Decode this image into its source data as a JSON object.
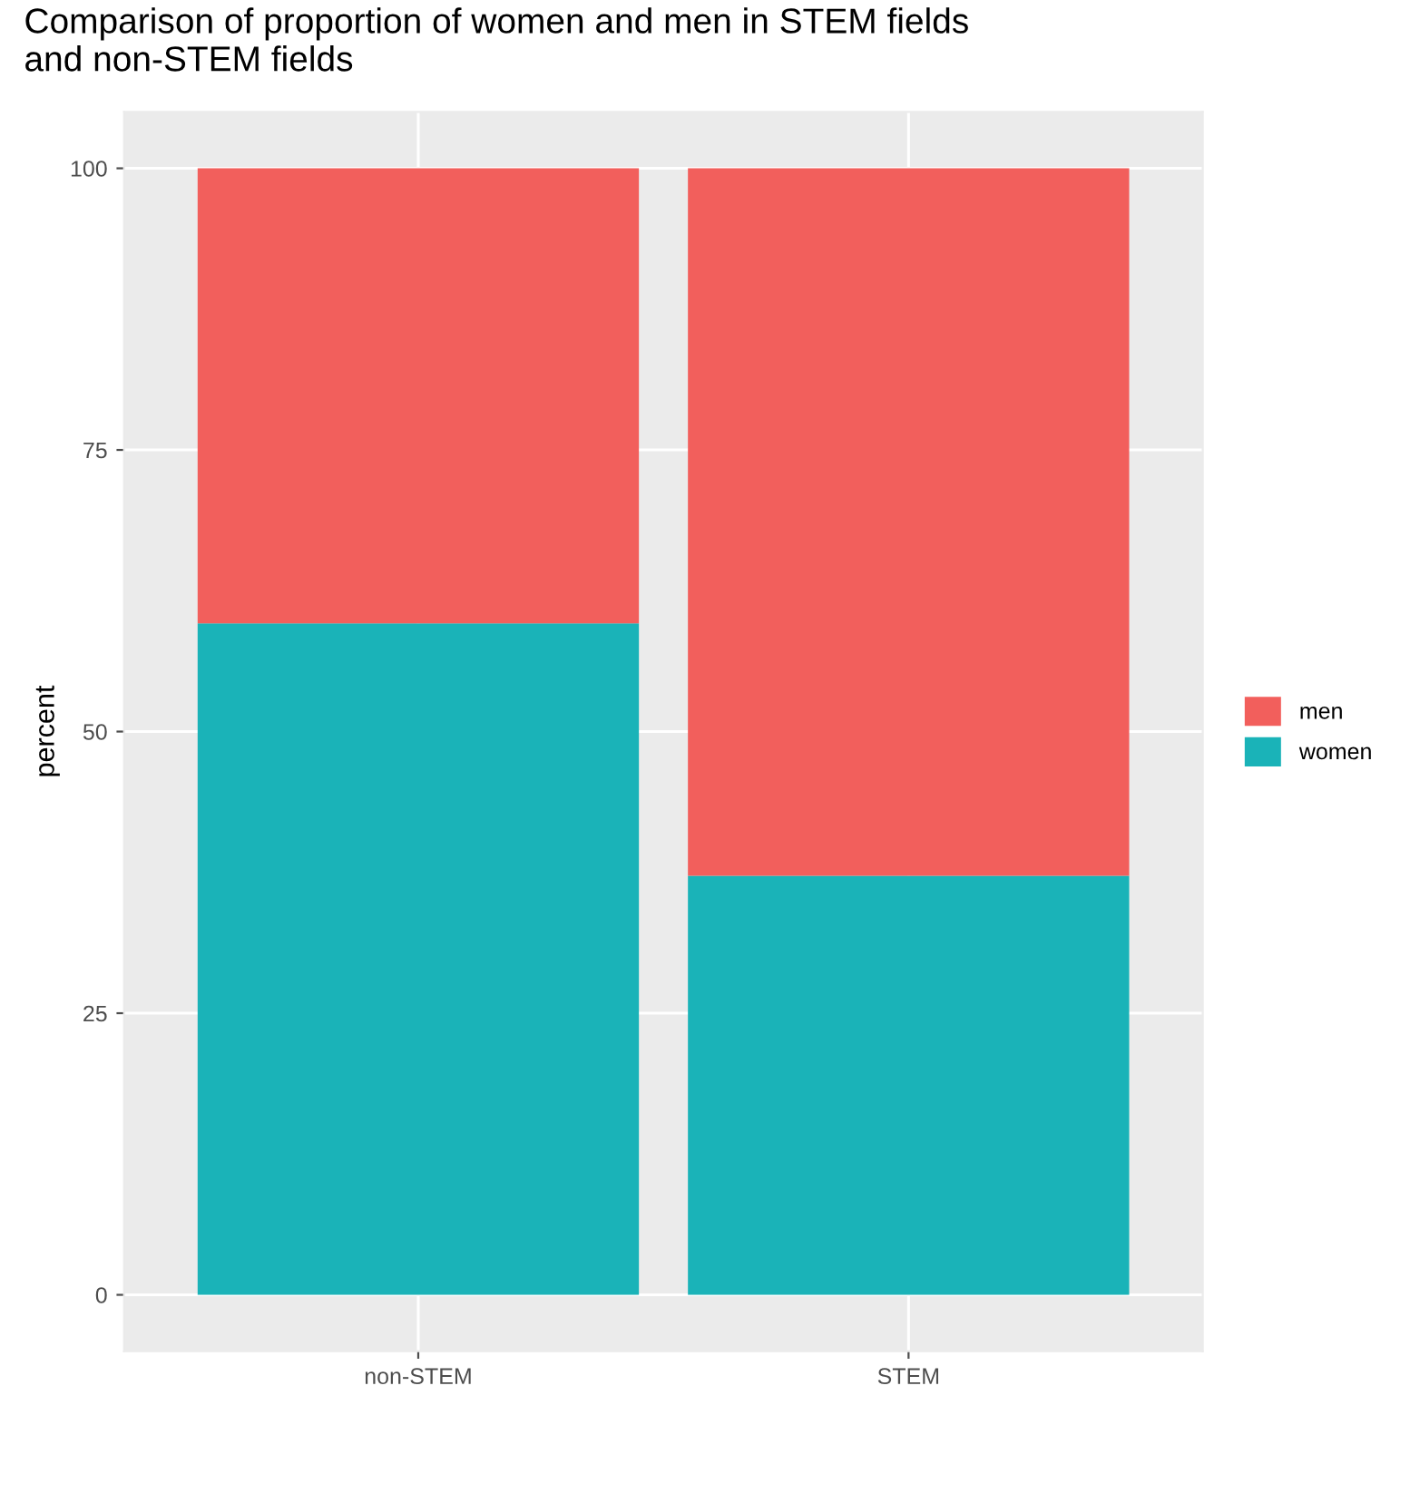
{
  "chart_data": {
    "type": "bar",
    "title": "Comparison of proportion of women and men in STEM fields\nand non-STEM fields",
    "ylabel": "percent",
    "categories": [
      "non-STEM",
      "STEM"
    ],
    "stacked": true,
    "series": [
      {
        "name": "women",
        "color": "#1ab3b8",
        "values": [
          59.6,
          37.2
        ]
      },
      {
        "name": "men",
        "color": "#f25f5c",
        "values": [
          40.4,
          62.8
        ]
      }
    ],
    "ylim": [
      -5,
      105
    ],
    "yticks": [
      0,
      25,
      50,
      75,
      100
    ],
    "grid": true,
    "legend": "right"
  }
}
